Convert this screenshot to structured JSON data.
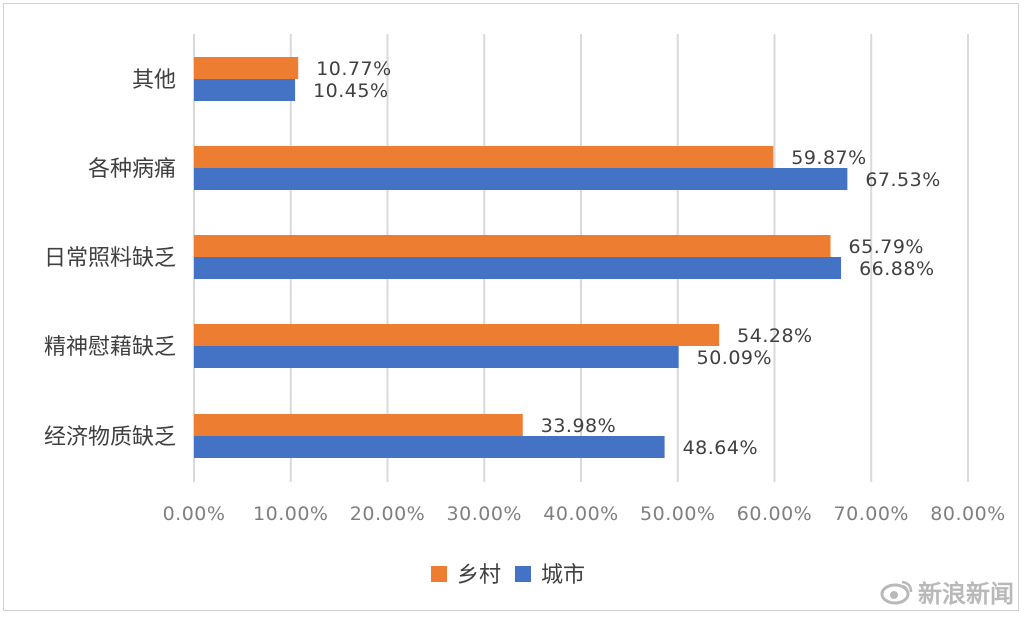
{
  "chart_data": {
    "type": "bar",
    "orientation": "horizontal",
    "categories": [
      "其他",
      "各种病痛",
      "日常照料缺乏",
      "精神慰藉缺乏",
      "经济物质缺乏"
    ],
    "series": [
      {
        "name": "乡村",
        "color": "#ED7D31",
        "values": [
          10.77,
          59.87,
          65.79,
          54.28,
          33.98
        ],
        "labels": [
          "10.77%",
          "59.87%",
          "65.79%",
          "54.28%",
          "33.98%"
        ]
      },
      {
        "name": "城市",
        "color": "#4472C4",
        "values": [
          10.45,
          67.53,
          66.88,
          50.09,
          48.64
        ],
        "labels": [
          "10.45%",
          "67.53%",
          "66.88%",
          "50.09%",
          "48.64%"
        ]
      }
    ],
    "xlim": [
      0,
      80
    ],
    "xticks": [
      0,
      10,
      20,
      30,
      40,
      50,
      60,
      70,
      80
    ],
    "xtick_labels": [
      "0.00%",
      "10.00%",
      "20.00%",
      "30.00%",
      "40.00%",
      "50.00%",
      "60.00%",
      "70.00%",
      "80.00%"
    ],
    "grid": true,
    "legend_position": "bottom"
  },
  "watermark": {
    "text": "新浪新闻",
    "icon": "weibo-eye-icon"
  }
}
